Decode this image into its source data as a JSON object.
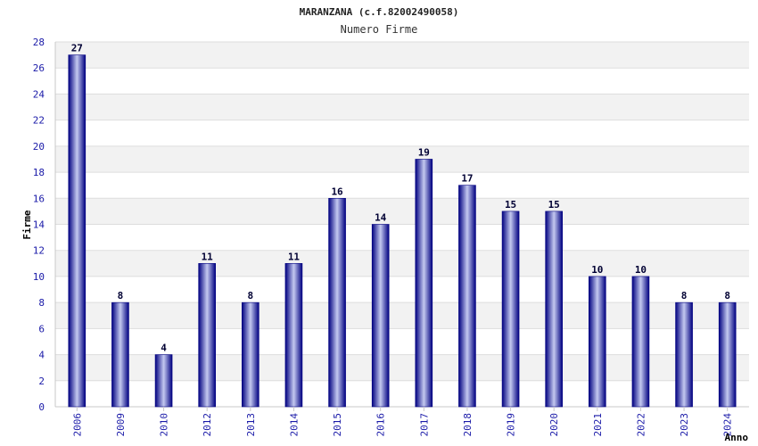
{
  "chart_data": {
    "type": "bar",
    "title": "MARANZANA (c.f.82002490058)",
    "subtitle": "Numero Firme",
    "xlabel": "Anno",
    "ylabel": "Firme",
    "ylim": [
      0,
      28
    ],
    "ytick_step": 2,
    "grid": true,
    "categories": [
      "2006",
      "2009",
      "2010",
      "2012",
      "2013",
      "2014",
      "2015",
      "2016",
      "2017",
      "2018",
      "2019",
      "2020",
      "2021",
      "2022",
      "2023",
      "2024"
    ],
    "values": [
      27,
      8,
      4,
      11,
      8,
      11,
      16,
      14,
      19,
      17,
      15,
      15,
      10,
      10,
      8,
      8
    ],
    "colors": {
      "bar_dark": "#000080",
      "bar_light": "#c4c9f0",
      "band": "#f2f2f2",
      "grid": "#dddddd",
      "axis": "#c8c8c8"
    }
  }
}
